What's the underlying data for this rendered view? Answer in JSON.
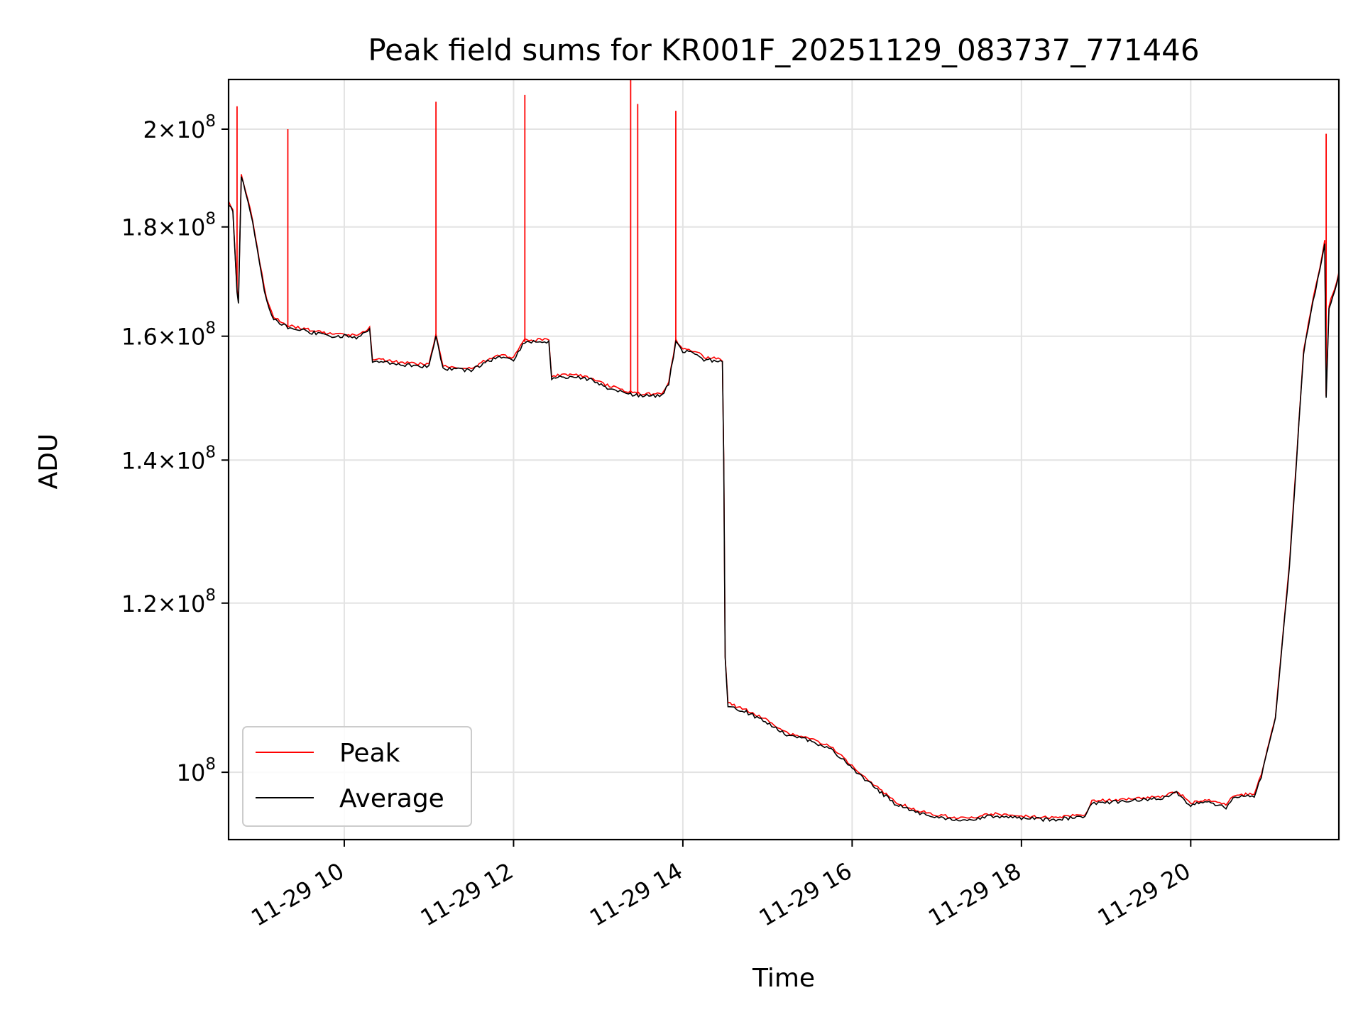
{
  "chart_data": {
    "type": "line",
    "title": "Peak field sums for KR001F_20251129_083737_771446",
    "xlabel": "Time",
    "ylabel": "ADU",
    "yscale": "log",
    "xlim": [
      "2025-11-29 08:38",
      "2025-11-29 21:45"
    ],
    "ylim": [
      93000000,
      211000000
    ],
    "grid": true,
    "legend_position": "lower-left",
    "x_ticks": [
      {
        "x": "2025-11-29 10:00",
        "label": "11-29 10"
      },
      {
        "x": "2025-11-29 12:00",
        "label": "11-29 12"
      },
      {
        "x": "2025-11-29 14:00",
        "label": "11-29 14"
      },
      {
        "x": "2025-11-29 16:00",
        "label": "11-29 16"
      },
      {
        "x": "2025-11-29 18:00",
        "label": "11-29 18"
      },
      {
        "x": "2025-11-29 20:00",
        "label": "11-29 20"
      }
    ],
    "y_ticks": [
      {
        "y": 100000000,
        "mant": "",
        "exp": "8"
      },
      {
        "y": 120000000,
        "mant": "1.2",
        "exp": "8"
      },
      {
        "y": 140000000,
        "mant": "1.4",
        "exp": "8"
      },
      {
        "y": 160000000,
        "mant": "1.6",
        "exp": "8"
      },
      {
        "y": 180000000,
        "mant": "1.8",
        "exp": "8"
      },
      {
        "y": 200000000,
        "mant": "2",
        "exp": "8"
      }
    ],
    "series": [
      {
        "name": "Average",
        "color": "#000000",
        "points": [
          [
            "2025-11-29 08:38",
            184500000
          ],
          [
            "2025-11-29 08:41",
            183000000
          ],
          [
            "2025-11-29 08:44",
            168000000
          ],
          [
            "2025-11-29 08:45",
            166000000
          ],
          [
            "2025-11-29 08:47",
            190000000
          ],
          [
            "2025-11-29 08:50",
            187000000
          ],
          [
            "2025-11-29 08:55",
            181000000
          ],
          [
            "2025-11-29 09:00",
            173000000
          ],
          [
            "2025-11-29 09:05",
            166000000
          ],
          [
            "2025-11-29 09:10",
            163000000
          ],
          [
            "2025-11-29 09:20",
            161500000
          ],
          [
            "2025-11-29 09:30",
            161000000
          ],
          [
            "2025-11-29 09:40",
            160500000
          ],
          [
            "2025-11-29 09:50",
            160000000
          ],
          [
            "2025-11-29 10:00",
            160000000
          ],
          [
            "2025-11-29 10:10",
            159800000
          ],
          [
            "2025-11-29 10:18",
            161000000
          ],
          [
            "2025-11-29 10:20",
            155800000
          ],
          [
            "2025-11-29 10:40",
            155200000
          ],
          [
            "2025-11-29 11:00",
            154800000
          ],
          [
            "2025-11-29 11:05",
            160000000
          ],
          [
            "2025-11-29 11:10",
            154500000
          ],
          [
            "2025-11-29 11:30",
            154200000
          ],
          [
            "2025-11-29 11:40",
            155500000
          ],
          [
            "2025-11-29 11:50",
            156500000
          ],
          [
            "2025-11-29 12:00",
            156000000
          ],
          [
            "2025-11-29 12:08",
            159000000
          ],
          [
            "2025-11-29 12:25",
            159000000
          ],
          [
            "2025-11-29 12:27",
            153000000
          ],
          [
            "2025-11-29 12:40",
            153200000
          ],
          [
            "2025-11-29 12:55",
            152700000
          ],
          [
            "2025-11-29 13:05",
            151500000
          ],
          [
            "2025-11-29 13:20",
            150500000
          ],
          [
            "2025-11-29 13:30",
            150000000
          ],
          [
            "2025-11-29 13:45",
            150000000
          ],
          [
            "2025-11-29 13:50",
            152000000
          ],
          [
            "2025-11-29 13:55",
            159000000
          ],
          [
            "2025-11-29 14:00",
            157500000
          ],
          [
            "2025-11-29 14:10",
            157000000
          ],
          [
            "2025-11-29 14:15",
            156000000
          ],
          [
            "2025-11-29 14:25",
            155800000
          ],
          [
            "2025-11-29 14:28",
            155500000
          ],
          [
            "2025-11-29 14:29",
            140000000
          ],
          [
            "2025-11-29 14:30",
            113000000
          ],
          [
            "2025-11-29 14:32",
            107500000
          ],
          [
            "2025-11-29 14:45",
            106700000
          ],
          [
            "2025-11-29 15:00",
            105500000
          ],
          [
            "2025-11-29 15:15",
            104000000
          ],
          [
            "2025-11-29 15:30",
            103500000
          ],
          [
            "2025-11-29 15:45",
            102500000
          ],
          [
            "2025-11-29 16:00",
            100500000
          ],
          [
            "2025-11-29 16:15",
            98500000
          ],
          [
            "2025-11-29 16:30",
            96700000
          ],
          [
            "2025-11-29 16:45",
            95800000
          ],
          [
            "2025-11-29 17:00",
            95300000
          ],
          [
            "2025-11-29 17:20",
            94900000
          ],
          [
            "2025-11-29 17:40",
            95400000
          ],
          [
            "2025-11-29 18:00",
            95200000
          ],
          [
            "2025-11-29 18:20",
            95000000
          ],
          [
            "2025-11-29 18:45",
            95300000
          ],
          [
            "2025-11-29 18:50",
            96700000
          ],
          [
            "2025-11-29 19:10",
            96900000
          ],
          [
            "2025-11-29 19:40",
            97200000
          ],
          [
            "2025-11-29 19:50",
            97800000
          ],
          [
            "2025-11-29 20:00",
            96500000
          ],
          [
            "2025-11-29 20:10",
            96900000
          ],
          [
            "2025-11-29 20:25",
            96300000
          ],
          [
            "2025-11-29 20:30",
            97300000
          ],
          [
            "2025-11-29 20:45",
            97500000
          ],
          [
            "2025-11-29 20:50",
            99500000
          ],
          [
            "2025-11-29 21:00",
            106000000
          ],
          [
            "2025-11-29 21:05",
            115000000
          ],
          [
            "2025-11-29 21:10",
            125000000
          ],
          [
            "2025-11-29 21:15",
            140000000
          ],
          [
            "2025-11-29 21:20",
            157000000
          ],
          [
            "2025-11-29 21:25",
            164000000
          ],
          [
            "2025-11-29 21:30",
            170000000
          ],
          [
            "2025-11-29 21:33",
            174000000
          ],
          [
            "2025-11-29 21:35",
            177000000
          ],
          [
            "2025-11-29 21:36",
            150000000
          ],
          [
            "2025-11-29 21:38",
            165000000
          ],
          [
            "2025-11-29 21:42",
            168000000
          ],
          [
            "2025-11-29 21:45",
            171000000
          ]
        ]
      },
      {
        "name": "Peak",
        "color": "#ff0000",
        "spikes": [
          [
            "2025-11-29 08:44",
            205000000
          ],
          [
            "2025-11-29 09:20",
            200000000
          ],
          [
            "2025-11-29 11:05",
            206000000
          ],
          [
            "2025-11-29 12:08",
            207500000
          ],
          [
            "2025-11-29 13:23",
            211000000
          ],
          [
            "2025-11-29 13:28",
            205500000
          ],
          [
            "2025-11-29 13:55",
            204000000
          ],
          [
            "2025-11-29 21:36",
            199000000
          ]
        ]
      }
    ]
  }
}
